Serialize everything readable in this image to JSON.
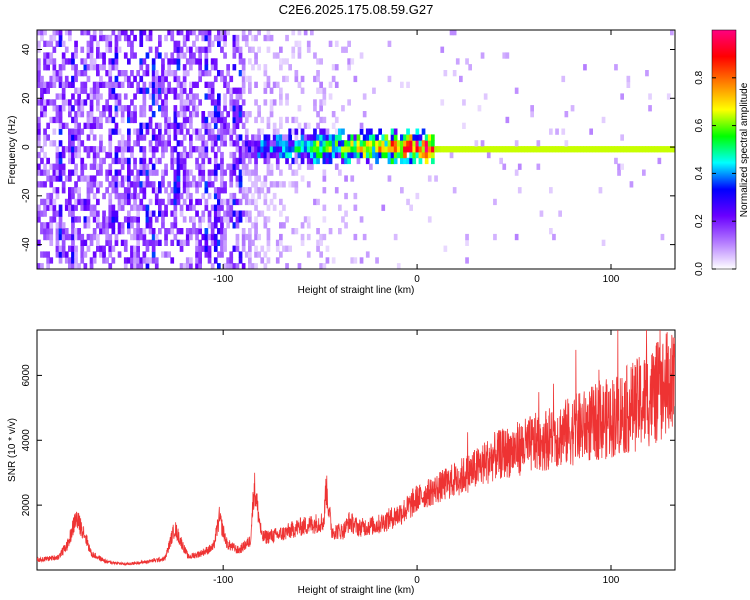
{
  "title": "C2E6.2025.175.08.59.G27",
  "chart_data": [
    {
      "type": "heatmap",
      "xlabel": "Height of straight line (km)",
      "ylabel": "Frequency (Hz)",
      "xlim": [
        -196,
        133
      ],
      "ylim": [
        -50,
        48
      ],
      "x_ticks": [
        -100,
        0,
        100
      ],
      "y_ticks": [
        -40,
        -20,
        0,
        20,
        40
      ],
      "grid": false,
      "colorbar": {
        "label": "Normalized spectral amplitude",
        "range": [
          0,
          1
        ],
        "ticks": [
          0.0,
          0.2,
          0.4,
          0.6,
          0.8
        ],
        "colormap": [
          "#ffffff",
          "#b47cff",
          "#6a00ff",
          "#0000ff",
          "#00ffff",
          "#00ff00",
          "#ffff00",
          "#ff8000",
          "#ff0000",
          "#ff0080"
        ]
      },
      "features": {
        "noise_region_x": [
          -196,
          -90
        ],
        "noise_amplitude": 0.18,
        "signal_start_x": -90,
        "signal_center_frequency": 0,
        "signal_amplitude_at_start": 0.3,
        "signal_amplitude_at_end": 1.0,
        "stable_line_start_x": 8
      }
    },
    {
      "type": "line",
      "xlabel": "Height of straight line (km)",
      "ylabel": "SNR (10 * v/v)",
      "xlim": [
        -196,
        133
      ],
      "ylim": [
        0,
        7400
      ],
      "x_ticks": [
        -100,
        0,
        100
      ],
      "y_ticks": [
        2000,
        4000,
        6000
      ],
      "color": "#ee3333",
      "x": [
        -196,
        -185,
        -180,
        -176,
        -172,
        -168,
        -160,
        -150,
        -140,
        -130,
        -125,
        -122,
        -118,
        -112,
        -105,
        -102,
        -98,
        -92,
        -86,
        -84,
        -80,
        -70,
        -62,
        -55,
        -48,
        -47,
        -44,
        -38,
        -35,
        -30,
        -20,
        -10,
        -5,
        0,
        10,
        20,
        30,
        40,
        50,
        60,
        70,
        80,
        90,
        100,
        110,
        120,
        125,
        130,
        133
      ],
      "y": [
        300,
        400,
        800,
        1600,
        1200,
        500,
        250,
        180,
        250,
        350,
        1300,
        900,
        400,
        500,
        700,
        1600,
        800,
        600,
        900,
        2600,
        1000,
        1100,
        1300,
        1400,
        1500,
        2600,
        1200,
        1200,
        1500,
        1300,
        1400,
        1700,
        1900,
        2200,
        2500,
        2800,
        3100,
        3500,
        3700,
        3900,
        4100,
        4300,
        4500,
        4700,
        5000,
        5300,
        5500,
        5800,
        5500
      ]
    }
  ]
}
